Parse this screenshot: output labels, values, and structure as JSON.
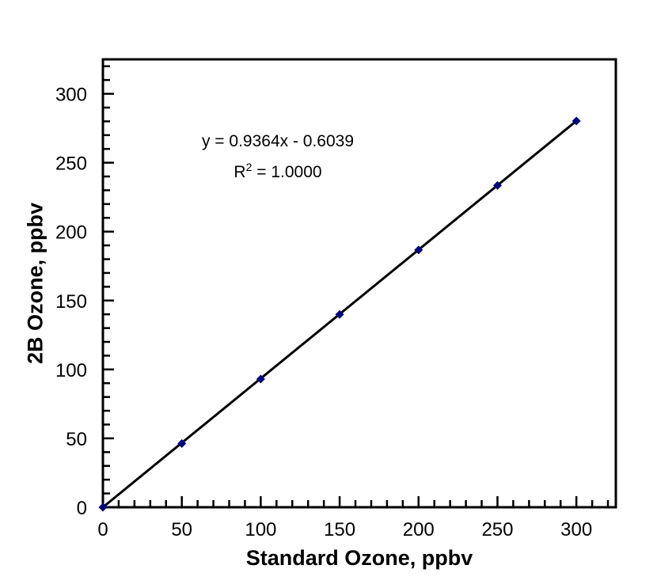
{
  "page": {
    "background": "#ffffff"
  },
  "chart_data": {
    "type": "scatter",
    "title": "",
    "xlabel": "Standard Ozone, ppbv",
    "ylabel": "2B Ozone, ppbv",
    "x": [
      0,
      50,
      100,
      150,
      200,
      250,
      300
    ],
    "y": [
      0,
      46.2,
      93.0,
      139.9,
      186.7,
      233.5,
      280.3
    ],
    "xlim": [
      0,
      325
    ],
    "ylim": [
      0,
      325
    ],
    "x_major_ticks": [
      0,
      50,
      100,
      150,
      200,
      250,
      300
    ],
    "y_major_ticks": [
      0,
      50,
      100,
      150,
      200,
      250,
      300
    ],
    "minor_tick_step": 10,
    "grid": false,
    "legend": null,
    "trendline": {
      "slope": 0.9364,
      "intercept": -0.6039,
      "color": "#000000"
    },
    "annotation": {
      "line1": "y = 0.9364x - 0.6039",
      "r_base": "R",
      "r_sup": "2",
      "r_rest": " = 1.0000"
    },
    "marker": {
      "shape": "diamond",
      "color": "#000080",
      "size": 11
    },
    "axis_color": "#000000",
    "text_color": "#000000"
  }
}
